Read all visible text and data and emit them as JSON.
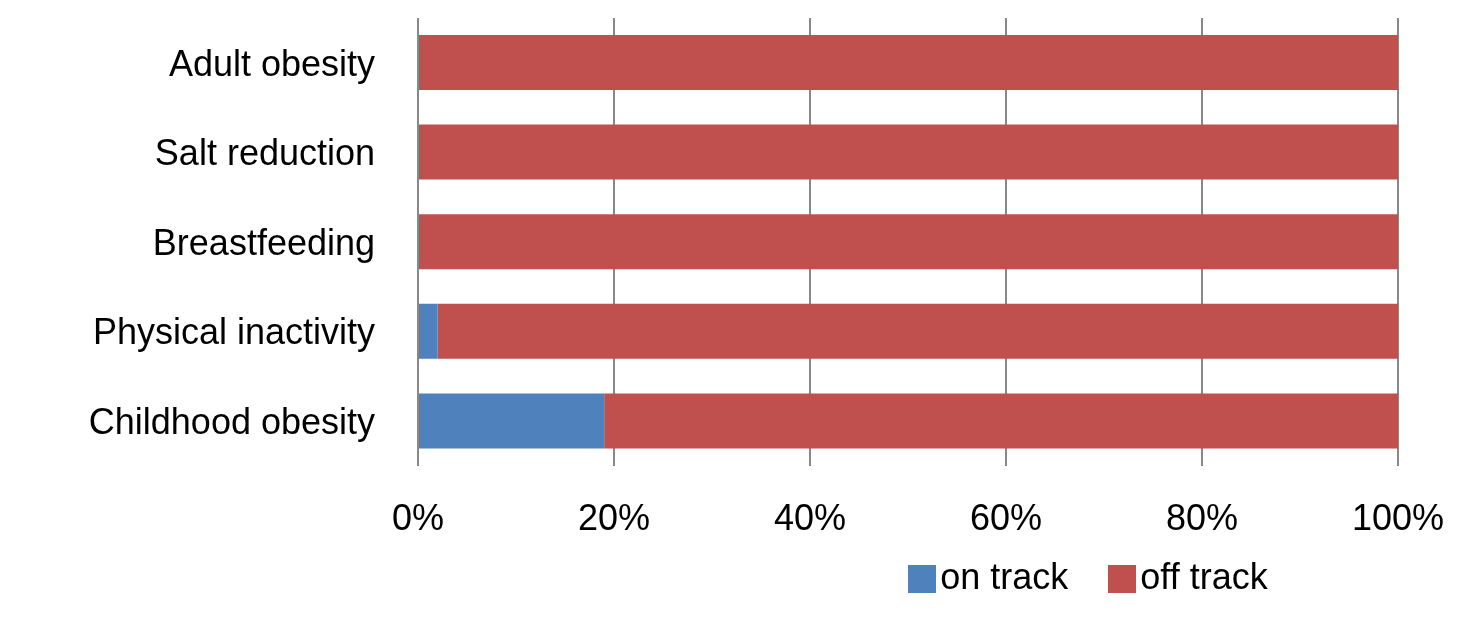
{
  "chart_data": {
    "type": "bar",
    "orientation": "horizontal",
    "stacked": true,
    "categories": [
      "Adult obesity",
      "Salt reduction",
      "Breastfeeding",
      "Physical inactivity",
      "Childhood obesity"
    ],
    "series": [
      {
        "name": "on track",
        "color": "#4f81bd",
        "values": [
          0,
          0,
          0,
          2,
          19
        ]
      },
      {
        "name": "off track",
        "color": "#c0504d",
        "values": [
          100,
          100,
          100,
          98,
          81
        ]
      }
    ],
    "xlim": [
      0,
      100
    ],
    "xticks": [
      {
        "value": 0,
        "label": "0%"
      },
      {
        "value": 20,
        "label": "20%"
      },
      {
        "value": 40,
        "label": "40%"
      },
      {
        "value": 60,
        "label": "60%"
      },
      {
        "value": 80,
        "label": "80%"
      },
      {
        "value": 100,
        "label": "100%"
      }
    ],
    "grid": "x",
    "legend": "bottom"
  }
}
